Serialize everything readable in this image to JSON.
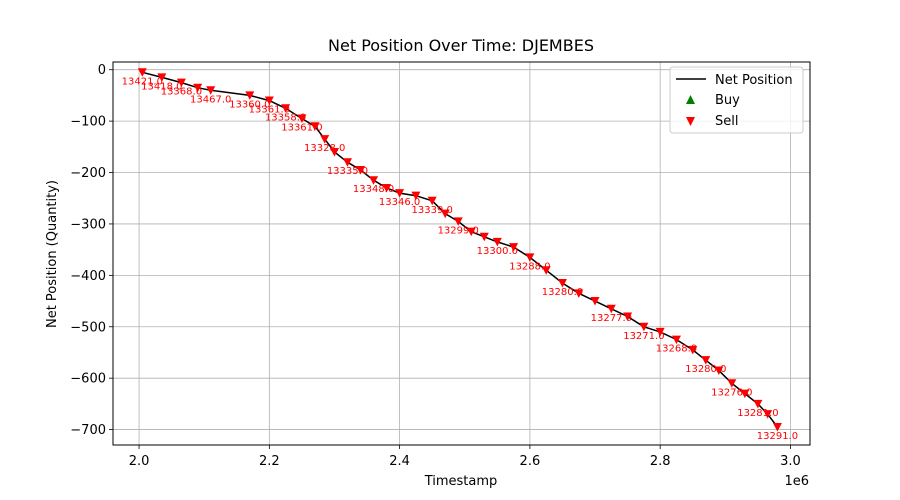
{
  "chart_data": {
    "type": "line",
    "title": "Net Position Over Time: DJEMBES",
    "xlabel": "Timestamp",
    "ylabel": "Net Position (Quantity)",
    "x_offset_label": "1e6",
    "xlim": [
      1.96,
      3.03
    ],
    "ylim": [
      -730,
      15
    ],
    "x_ticks": [
      2.0,
      2.2,
      2.4,
      2.6,
      2.8,
      3.0
    ],
    "x_tick_labels": [
      "2.0",
      "2.2",
      "2.4",
      "2.6",
      "2.8",
      "3.0"
    ],
    "y_ticks": [
      0,
      -100,
      -200,
      -300,
      -400,
      -500,
      -600,
      -700
    ],
    "y_tick_labels": [
      "0",
      "−100",
      "−200",
      "−300",
      "−400",
      "−500",
      "−600",
      "−700"
    ],
    "grid": true,
    "legend_position": "top-right",
    "colors": {
      "line": "#000000",
      "buy": "#008000",
      "sell": "#ff0000"
    },
    "legend": [
      {
        "label": "Net Position",
        "marker": "line"
      },
      {
        "label": "Buy",
        "marker": "triangle-up"
      },
      {
        "label": "Sell",
        "marker": "triangle-down"
      }
    ],
    "series": [
      {
        "name": "Net Position",
        "x": [
          2.005,
          2.035,
          2.065,
          2.09,
          2.11,
          2.17,
          2.2,
          2.225,
          2.25,
          2.27,
          2.285,
          2.3,
          2.32,
          2.34,
          2.36,
          2.38,
          2.4,
          2.425,
          2.45,
          2.47,
          2.49,
          2.51,
          2.53,
          2.55,
          2.575,
          2.6,
          2.625,
          2.65,
          2.675,
          2.7,
          2.725,
          2.75,
          2.775,
          2.8,
          2.825,
          2.85,
          2.87,
          2.89,
          2.91,
          2.93,
          2.95,
          2.965,
          2.98
        ],
        "y": [
          -5,
          -15,
          -25,
          -35,
          -40,
          -50,
          -60,
          -75,
          -95,
          -110,
          -135,
          -160,
          -180,
          -195,
          -215,
          -230,
          -240,
          -245,
          -255,
          -280,
          -295,
          -315,
          -325,
          -335,
          -345,
          -365,
          -390,
          -415,
          -435,
          -450,
          -465,
          -480,
          -500,
          -510,
          -525,
          -545,
          -565,
          -585,
          -610,
          -630,
          -650,
          -670,
          -695
        ]
      },
      {
        "name": "Sell",
        "x": [
          2.005,
          2.035,
          2.065,
          2.09,
          2.11,
          2.17,
          2.2,
          2.225,
          2.25,
          2.27,
          2.285,
          2.3,
          2.32,
          2.34,
          2.36,
          2.38,
          2.4,
          2.425,
          2.45,
          2.47,
          2.49,
          2.51,
          2.53,
          2.55,
          2.575,
          2.6,
          2.625,
          2.65,
          2.675,
          2.7,
          2.725,
          2.75,
          2.775,
          2.8,
          2.825,
          2.85,
          2.87,
          2.89,
          2.91,
          2.93,
          2.95,
          2.965,
          2.98
        ],
        "y": [
          -5,
          -15,
          -25,
          -35,
          -40,
          -50,
          -60,
          -75,
          -95,
          -110,
          -135,
          -160,
          -180,
          -195,
          -215,
          -230,
          -240,
          -245,
          -255,
          -280,
          -295,
          -315,
          -325,
          -335,
          -345,
          -365,
          -390,
          -415,
          -435,
          -450,
          -465,
          -480,
          -500,
          -510,
          -525,
          -545,
          -565,
          -585,
          -610,
          -630,
          -650,
          -670,
          -695
        ]
      },
      {
        "name": "Buy",
        "x": [],
        "y": []
      }
    ],
    "annotations": [
      {
        "text": "13421.0",
        "x": 2.005,
        "y": -5
      },
      {
        "text": "13418.0",
        "x": 2.035,
        "y": -15
      },
      {
        "text": "13368.0",
        "x": 2.065,
        "y": -25
      },
      {
        "text": "13467.0",
        "x": 2.11,
        "y": -40
      },
      {
        "text": "13360.0",
        "x": 2.17,
        "y": -50
      },
      {
        "text": "13361.0",
        "x": 2.2,
        "y": -60
      },
      {
        "text": "13358.0",
        "x": 2.225,
        "y": -75
      },
      {
        "text": "13361.0",
        "x": 2.25,
        "y": -95
      },
      {
        "text": "13328.0",
        "x": 2.285,
        "y": -135
      },
      {
        "text": "13335.0",
        "x": 2.32,
        "y": -180
      },
      {
        "text": "13348.0",
        "x": 2.36,
        "y": -215
      },
      {
        "text": "13346.0",
        "x": 2.4,
        "y": -240
      },
      {
        "text": "13339.0",
        "x": 2.45,
        "y": -255
      },
      {
        "text": "13299.0",
        "x": 2.49,
        "y": -295
      },
      {
        "text": "13300.0",
        "x": 2.55,
        "y": -335
      },
      {
        "text": "13288.0",
        "x": 2.6,
        "y": -365
      },
      {
        "text": "13280.0",
        "x": 2.65,
        "y": -415
      },
      {
        "text": "13277.0",
        "x": 2.725,
        "y": -465
      },
      {
        "text": "13271.0",
        "x": 2.775,
        "y": -500
      },
      {
        "text": "13268.0",
        "x": 2.825,
        "y": -525
      },
      {
        "text": "13280.0",
        "x": 2.87,
        "y": -565
      },
      {
        "text": "13276.0",
        "x": 2.91,
        "y": -610
      },
      {
        "text": "13281.0",
        "x": 2.95,
        "y": -650
      },
      {
        "text": "13291.0",
        "x": 2.98,
        "y": -695
      }
    ]
  }
}
